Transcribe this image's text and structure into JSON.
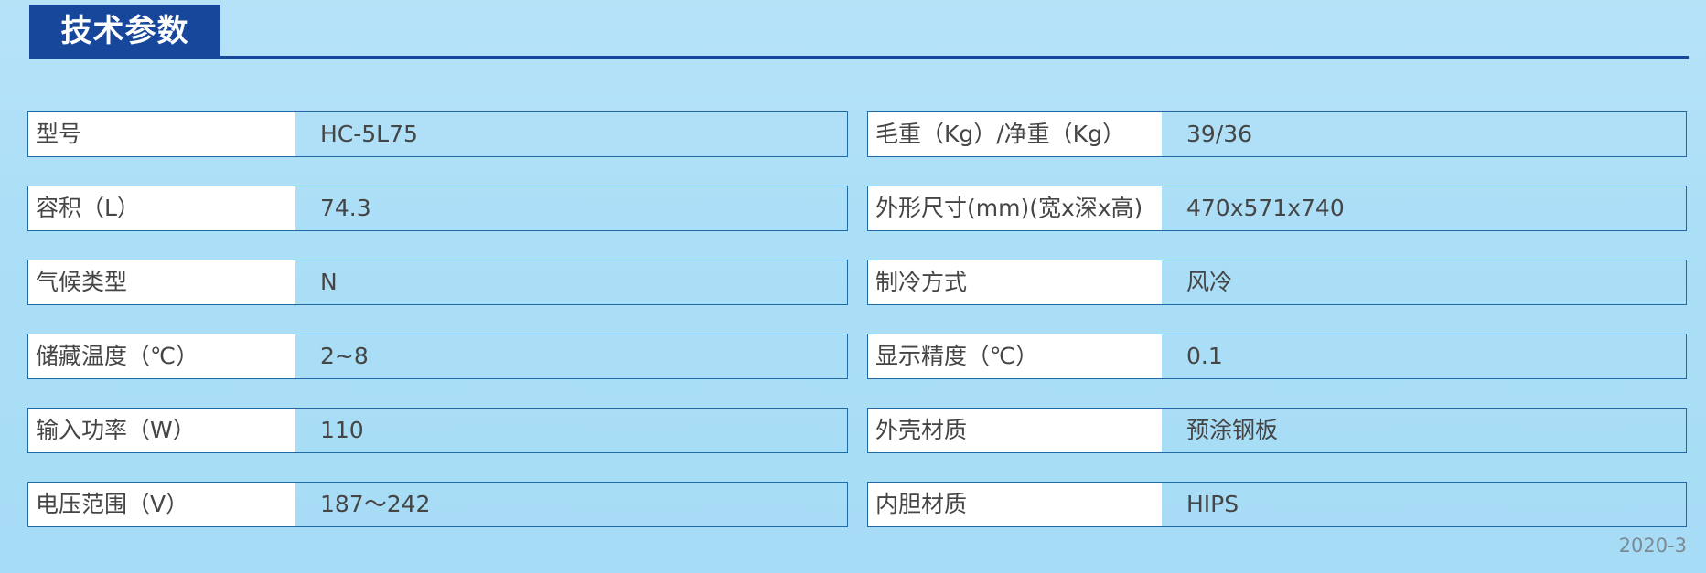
{
  "title": "技术参数",
  "left": [
    {
      "label": "型号",
      "value": "HC-5L75"
    },
    {
      "label": "容积（L）",
      "value": "74.3"
    },
    {
      "label": "气候类型",
      "value": "N"
    },
    {
      "label": "储藏温度（℃）",
      "value": "2~8"
    },
    {
      "label": "输入功率（W）",
      "value": "110"
    },
    {
      "label": "电压范围（V）",
      "value": "187～242"
    }
  ],
  "right": [
    {
      "label": "毛重（Kg）/净重（Kg）",
      "value": "39/36"
    },
    {
      "label": "外形尺寸(mm)(宽x深x高)",
      "value": "470x571x740"
    },
    {
      "label": "制冷方式",
      "value": "风冷"
    },
    {
      "label": "显示精度（℃）",
      "value": "0.1"
    },
    {
      "label": "外壳材质",
      "value": "预涂钢板"
    },
    {
      "label": "内胆材质",
      "value": "HIPS"
    }
  ],
  "footer": "2020-3",
  "colors": {
    "header": "#17479a",
    "border": "#1f6aa3",
    "background": "#a9ddf6"
  }
}
